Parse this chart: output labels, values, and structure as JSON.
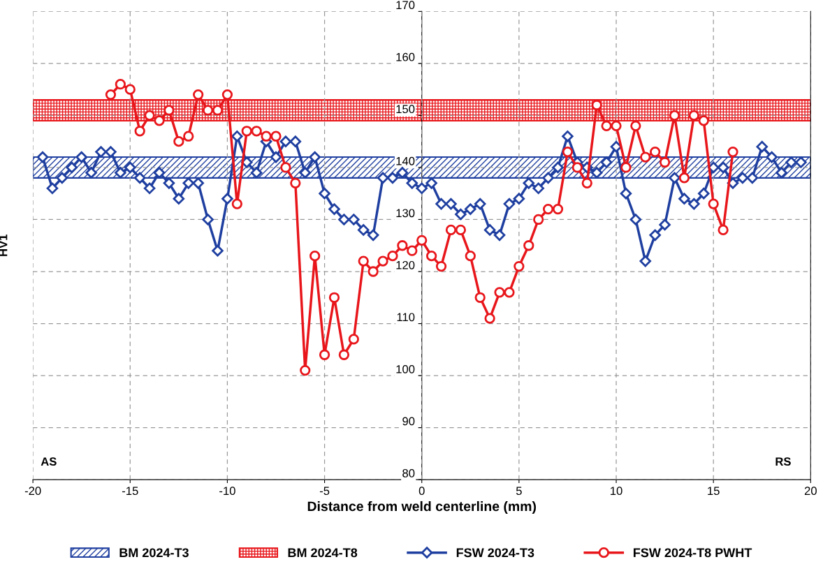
{
  "chart_data": {
    "type": "line",
    "xlabel": "Distance from weld centerline (mm)",
    "ylabel": "HV1",
    "xlim": [
      -20,
      20
    ],
    "xticks": [
      -20,
      -15,
      -10,
      -5,
      0,
      5,
      10,
      15,
      20
    ],
    "ylim": [
      80,
      170
    ],
    "yticks": [
      80,
      90,
      100,
      110,
      120,
      130,
      140,
      150,
      160,
      170
    ],
    "grid": true,
    "legend": "bottom",
    "line_style": "solid",
    "bands": [
      {
        "axis": "y",
        "from": 138,
        "to": 142,
        "label": "BM 2024-T3",
        "color": "#1f3fa0"
      },
      {
        "axis": "y",
        "from": 149,
        "to": 153,
        "label": "BM 2024-T8",
        "color": "#e8161b"
      }
    ],
    "annotations": [
      "AS",
      "RS"
    ],
    "series": [
      {
        "name": "FSW 2024-T3",
        "color": "#1f3fa0",
        "marker": "diamond",
        "x": [
          -19.5,
          -19,
          -18.5,
          -18,
          -17.5,
          -17,
          -16.5,
          -16,
          -15.5,
          -15,
          -14.5,
          -14,
          -13.5,
          -13,
          -12.5,
          -12,
          -11.5,
          -11,
          -10.5,
          -10,
          -9.5,
          -9,
          -8.5,
          -8,
          -7.5,
          -7,
          -6.5,
          -6,
          -5.5,
          -5,
          -4.5,
          -4,
          -3.5,
          -3,
          -2.5,
          -2,
          -1.5,
          -1,
          -0.5,
          0,
          0.5,
          1,
          1.5,
          2,
          2.5,
          3,
          3.5,
          4,
          4.5,
          5,
          5.5,
          6,
          6.5,
          7,
          7.5,
          8,
          8.5,
          9,
          9.5,
          10,
          10.5,
          11,
          11.5,
          12,
          12.5,
          13,
          13.5,
          14,
          14.5,
          15,
          15.5,
          16,
          16.5,
          17,
          17.5,
          18,
          18.5,
          19,
          19.5
        ],
        "values": [
          142,
          136,
          138,
          140,
          142,
          139,
          143,
          143,
          139,
          140,
          138,
          136,
          139,
          137,
          134,
          137,
          137,
          130,
          124,
          134,
          146,
          141,
          139,
          145,
          142,
          145,
          145,
          139,
          142,
          135,
          132,
          130,
          130,
          128,
          127,
          138,
          138,
          139,
          137,
          136,
          137,
          133,
          133,
          131,
          132,
          133,
          128,
          127,
          133,
          134,
          137,
          136,
          138,
          140,
          146,
          141,
          140,
          139,
          141,
          144,
          135,
          130,
          122,
          127,
          129,
          138,
          134,
          133,
          135,
          140,
          140,
          137,
          138,
          138,
          144,
          142,
          139,
          141,
          141
        ]
      },
      {
        "name": "FSW 2024-T8 PWHT",
        "color": "#e8161b",
        "marker": "circle",
        "x": [
          -16,
          -15.5,
          -15,
          -14.5,
          -14,
          -13.5,
          -13,
          -12.5,
          -12,
          -11.5,
          -11,
          -10.5,
          -10,
          -9.5,
          -9,
          -8.5,
          -8,
          -7.5,
          -7,
          -6.5,
          -6,
          -5.5,
          -5,
          -4.5,
          -4,
          -3.5,
          -3,
          -2.5,
          -2,
          -1.5,
          -1,
          -0.5,
          0,
          0.5,
          1,
          1.5,
          2,
          2.5,
          3,
          3.5,
          4,
          4.5,
          5,
          5.5,
          6,
          6.5,
          7,
          7.5,
          8,
          8.5,
          9,
          9.5,
          10,
          10.5,
          11,
          11.5,
          12,
          12.5,
          13,
          13.5,
          14,
          14.5,
          15,
          15.5,
          16
        ],
        "values": [
          154,
          156,
          155,
          147,
          150,
          149,
          151,
          145,
          146,
          154,
          151,
          151,
          154,
          133,
          147,
          147,
          146,
          146,
          140,
          137,
          101,
          123,
          104,
          115,
          104,
          107,
          122,
          120,
          122,
          123,
          125,
          124,
          126,
          123,
          121,
          128,
          128,
          123,
          115,
          111,
          116,
          116,
          121,
          125,
          130,
          132,
          132,
          143,
          140,
          137,
          152,
          148,
          148,
          140,
          148,
          142,
          143,
          141,
          150,
          138,
          150,
          149,
          133,
          128,
          143
        ]
      }
    ]
  }
}
